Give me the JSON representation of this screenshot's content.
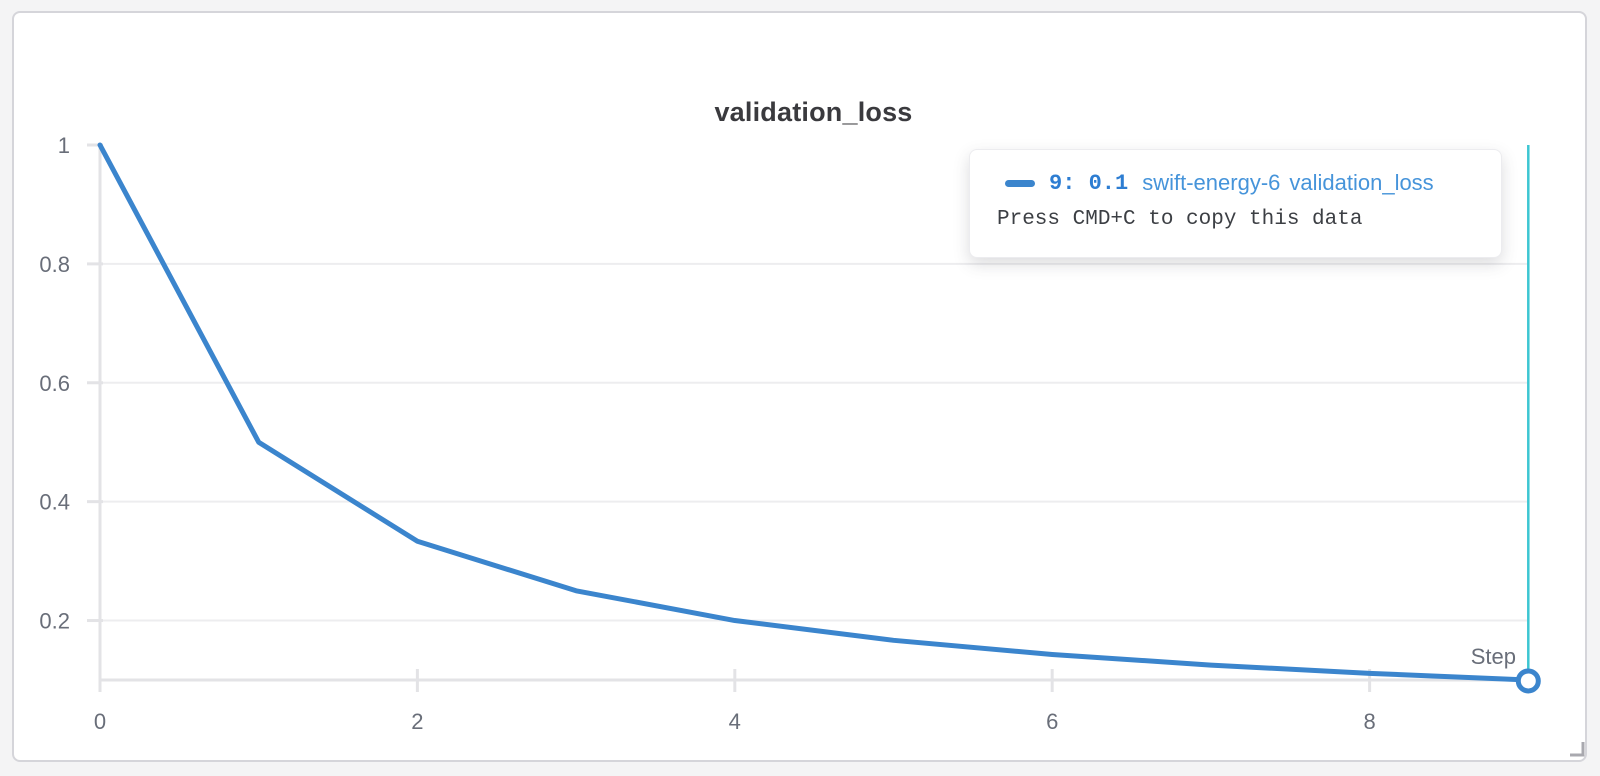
{
  "colors": {
    "grid": "#ededef",
    "axis": "#e3e3e6",
    "tick_label": "#696e79",
    "line": "#3b85cd",
    "crosshair": "#3cc6d2",
    "tooltip_value": "#2d7dd2",
    "tooltip_run": "#4694da",
    "tooltip_hint": "#3c3f44"
  },
  "tooltip": {
    "point_label": "9: 0.1",
    "run_name": "swift-energy-6",
    "metric_name": "validation_loss",
    "hint": "Press CMD+C to copy this data"
  },
  "chart_data": {
    "type": "line",
    "title": "validation_loss",
    "xlabel": "Step",
    "ylabel": "",
    "x_ticks": [
      0,
      2,
      4,
      6,
      8
    ],
    "y_ticks": [
      1,
      0.8,
      0.6,
      0.4,
      0.2
    ],
    "xlim": [
      0,
      9
    ],
    "ylim": [
      0.1,
      1
    ],
    "grid": "horizontal",
    "legend": "tooltip",
    "series": [
      {
        "name": "swift-energy-6",
        "metric": "validation_loss",
        "color": "#3b85cd",
        "x": [
          0,
          1,
          2,
          3,
          4,
          5,
          6,
          7,
          8,
          9
        ],
        "y": [
          1,
          0.5,
          0.3333,
          0.25,
          0.2,
          0.1667,
          0.1429,
          0.125,
          0.1111,
          0.1
        ]
      }
    ],
    "highlight": {
      "x": 9,
      "y": 0.1
    }
  }
}
